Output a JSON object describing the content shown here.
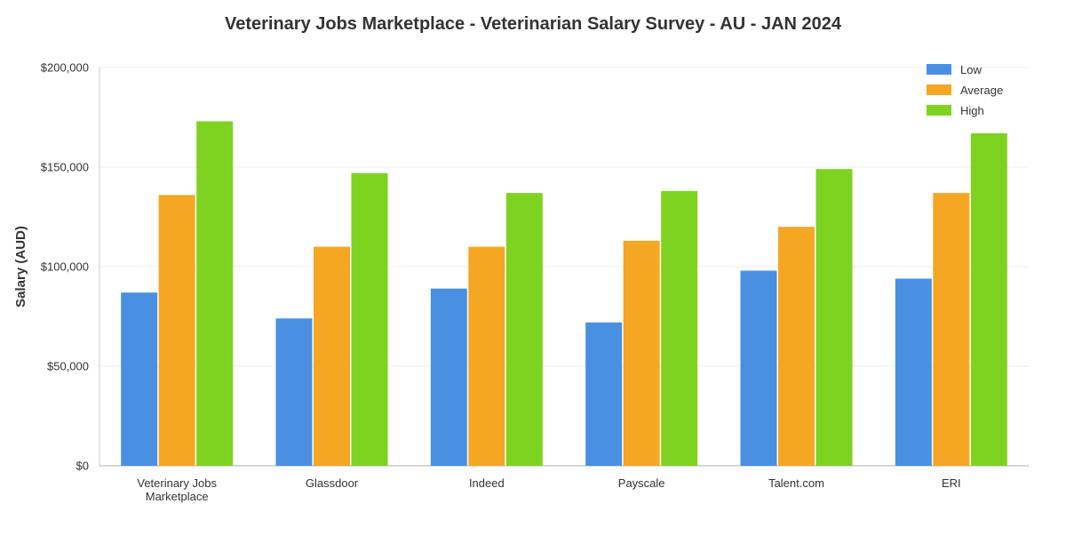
{
  "chart_data": {
    "type": "bar",
    "title": "Veterinary Jobs Marketplace - Veterinarian Salary Survey - AU - JAN 2024",
    "xlabel": "",
    "ylabel": "Salary (AUD)",
    "ylim": [
      0,
      200000
    ],
    "yticks": [
      0,
      50000,
      100000,
      150000,
      200000
    ],
    "ytick_labels": [
      "$0",
      "$50,000",
      "$100,000",
      "$150,000",
      "$200,000"
    ],
    "categories": [
      "Veterinary Jobs Marketplace",
      "Glassdoor",
      "Indeed",
      "Payscale",
      "Talent.com",
      "ERI"
    ],
    "category_lines": [
      [
        "Veterinary Jobs",
        "Marketplace"
      ],
      [
        "Glassdoor"
      ],
      [
        "Indeed"
      ],
      [
        "Payscale"
      ],
      [
        "Talent.com"
      ],
      [
        "ERI"
      ]
    ],
    "series": [
      {
        "name": "Low",
        "color": "#4a90e2",
        "values": [
          87000,
          74000,
          89000,
          72000,
          98000,
          94000
        ]
      },
      {
        "name": "Average",
        "color": "#f5a623",
        "values": [
          136000,
          110000,
          110000,
          113000,
          120000,
          137000
        ]
      },
      {
        "name": "High",
        "color": "#7ed321",
        "values": [
          173000,
          147000,
          137000,
          138000,
          149000,
          167000
        ]
      }
    ],
    "grid": true,
    "legend_position": "top-right"
  }
}
